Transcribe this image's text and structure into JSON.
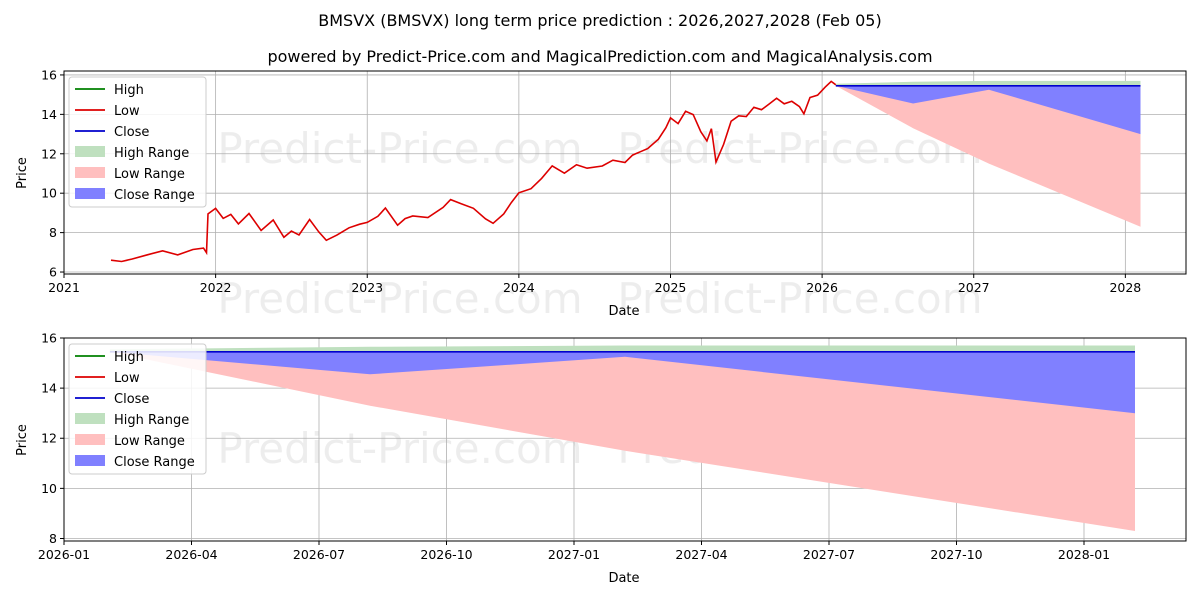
{
  "title_line1": "BMSVX (BMSVX) long term price prediction : 2026,2027,2028 (Feb 05)",
  "title_line2": "powered by Predict-Price.com and MagicalPrediction.com and MagicalAnalysis.com",
  "watermark": "Predict-Price.com",
  "colors": {
    "high": "#008000",
    "low": "#dd0000",
    "close": "#0000cc",
    "high_range": "#bfe0bf",
    "low_range": "#ffbfbf",
    "close_range": "#8080ff"
  },
  "chart_data": [
    {
      "type": "line",
      "name": "long-term",
      "xlabel": "Date",
      "ylabel": "Price",
      "xlim": [
        2021.0,
        2028.4
      ],
      "ylim": [
        5.9,
        16.2
      ],
      "xticks": [
        2021,
        2022,
        2023,
        2024,
        2025,
        2026,
        2027,
        2028
      ],
      "xtick_labels": [
        "2021",
        "2022",
        "2023",
        "2024",
        "2025",
        "2026",
        "2027",
        "2028"
      ],
      "yticks": [
        6,
        8,
        10,
        12,
        14,
        16
      ],
      "ytick_labels": [
        "6",
        "8",
        "10",
        "12",
        "14",
        "16"
      ],
      "legend": [
        "High",
        "Low",
        "Close",
        "High Range",
        "Low Range",
        "Close Range"
      ],
      "legend_position": "upper-left",
      "history": {
        "x": [
          2021.31,
          2021.38,
          2021.45,
          2021.55,
          2021.65,
          2021.75,
          2021.85,
          2021.92,
          2021.94,
          2021.95,
          2022.0,
          2022.05,
          2022.1,
          2022.15,
          2022.22,
          2022.3,
          2022.38,
          2022.45,
          2022.5,
          2022.55,
          2022.62,
          2022.68,
          2022.73,
          2022.8,
          2022.88,
          2022.95,
          2023.0,
          2023.07,
          2023.12,
          2023.2,
          2023.25,
          2023.3,
          2023.4,
          2023.5,
          2023.55,
          2023.62,
          2023.7,
          2023.78,
          2023.83,
          2023.9,
          2023.95,
          2024.0,
          2024.08,
          2024.15,
          2024.22,
          2024.3,
          2024.38,
          2024.45,
          2024.55,
          2024.62,
          2024.7,
          2024.75,
          2024.8,
          2024.85,
          2024.92,
          2024.97,
          2025.0,
          2025.05,
          2025.1,
          2025.15,
          2025.2,
          2025.24,
          2025.27,
          2025.3,
          2025.35,
          2025.4,
          2025.45,
          2025.5,
          2025.55,
          2025.6,
          2025.65,
          2025.7,
          2025.75,
          2025.8,
          2025.85,
          2025.88,
          2025.92,
          2025.97,
          2026.02,
          2026.06,
          2026.09
        ],
        "values": [
          6.6,
          6.5,
          6.6,
          6.8,
          7.0,
          6.8,
          7.1,
          7.2,
          7.0,
          9.0,
          9.3,
          8.8,
          9.0,
          8.5,
          9.0,
          8.1,
          8.6,
          7.7,
          8.0,
          7.8,
          8.6,
          8.0,
          7.6,
          7.9,
          8.3,
          8.5,
          8.6,
          8.9,
          9.3,
          8.4,
          8.7,
          8.8,
          8.7,
          9.2,
          9.6,
          9.4,
          9.2,
          8.7,
          8.5,
          9.0,
          9.6,
          10.1,
          10.3,
          10.8,
          11.4,
          11.0,
          11.4,
          11.2,
          11.3,
          11.6,
          11.5,
          11.9,
          12.1,
          12.3,
          12.8,
          13.4,
          13.9,
          13.6,
          14.2,
          14.0,
          13.1,
          12.6,
          13.2,
          11.5,
          12.4,
          13.6,
          13.9,
          13.9,
          14.4,
          14.3,
          14.6,
          14.9,
          14.6,
          14.7,
          14.4,
          14.0,
          14.8,
          14.9,
          15.3,
          15.6,
          15.5
        ]
      },
      "forecast": {
        "x": [
          2026.09,
          2026.6,
          2027.1,
          2028.1
        ],
        "close": [
          15.45,
          15.45,
          15.45,
          15.45
        ],
        "high_upper": [
          15.55,
          15.65,
          15.7,
          15.7
        ],
        "close_lower": [
          15.45,
          14.55,
          15.25,
          13.0
        ],
        "low_lower": [
          15.45,
          13.3,
          11.5,
          8.3
        ]
      }
    },
    {
      "type": "line",
      "name": "forecast-zoom",
      "xlabel": "Date",
      "ylabel": "Price",
      "xlim": [
        2026.0,
        2028.2
      ],
      "ylim": [
        7.9,
        16.0
      ],
      "xticks": [
        2026.0,
        2026.25,
        2026.5,
        2026.75,
        2027.0,
        2027.25,
        2027.5,
        2027.75,
        2028.0
      ],
      "xtick_labels": [
        "2026-01",
        "2026-04",
        "2026-07",
        "2026-10",
        "2027-01",
        "2027-04",
        "2027-07",
        "2027-10",
        "2028-01"
      ],
      "yticks": [
        8,
        10,
        12,
        14,
        16
      ],
      "ytick_labels": [
        "8",
        "10",
        "12",
        "14",
        "16"
      ],
      "legend": [
        "High",
        "Low",
        "Close",
        "High Range",
        "Low Range",
        "Close Range"
      ],
      "legend_position": "upper-left",
      "forecast": {
        "x": [
          2026.09,
          2026.6,
          2027.1,
          2028.1
        ],
        "close": [
          15.45,
          15.45,
          15.45,
          15.45
        ],
        "high_upper": [
          15.55,
          15.65,
          15.7,
          15.7
        ],
        "close_lower": [
          15.45,
          14.55,
          15.25,
          13.0
        ],
        "low_lower": [
          15.45,
          13.3,
          11.5,
          8.3
        ]
      }
    }
  ]
}
